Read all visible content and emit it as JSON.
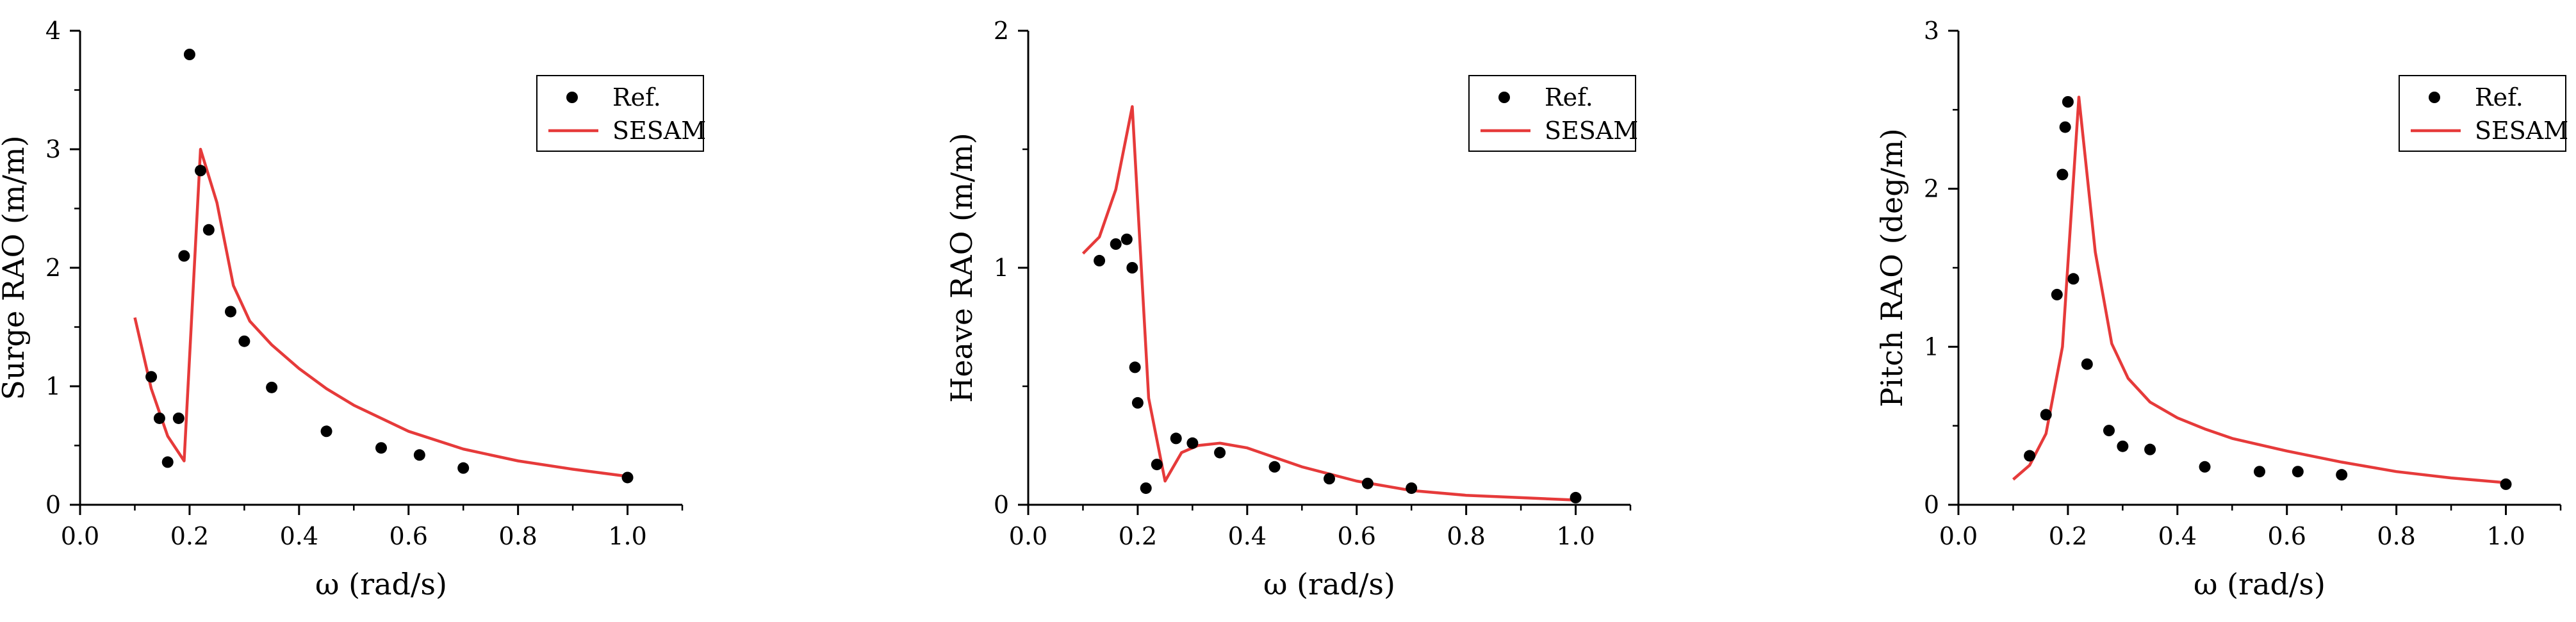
{
  "figure_title": "",
  "chart_data": [
    {
      "type": "scatter",
      "title": "",
      "xlabel": "ω (rad/s)",
      "ylabel": "Surge RAO (m/m)",
      "xlim": [
        0.0,
        1.1
      ],
      "ylim": [
        0,
        4
      ],
      "xticks": [
        0.0,
        0.2,
        0.4,
        0.6,
        0.8,
        1.0
      ],
      "xtick_labels": [
        "0.0",
        "0.2",
        "0.4",
        "0.6",
        "0.8",
        "1.0"
      ],
      "yticks": [
        0,
        1,
        2,
        3,
        4
      ],
      "ytick_labels": [
        "0",
        "1",
        "2",
        "3",
        "4"
      ],
      "grid": false,
      "legend": {
        "position": "top-right",
        "entries": [
          "Ref.",
          "SESAM"
        ]
      },
      "series": [
        {
          "name": "Ref.",
          "style": "markers",
          "color": "#000000",
          "x": [
            0.13,
            0.145,
            0.16,
            0.18,
            0.19,
            0.2,
            0.22,
            0.235,
            0.275,
            0.3,
            0.35,
            0.45,
            0.55,
            0.62,
            0.7,
            1.0
          ],
          "y": [
            1.08,
            0.73,
            0.36,
            0.73,
            2.1,
            3.8,
            2.82,
            2.32,
            1.63,
            1.38,
            0.99,
            0.62,
            0.48,
            0.42,
            0.31,
            0.23
          ]
        },
        {
          "name": "SESAM",
          "style": "line",
          "color": "#e63a3a",
          "x": [
            0.1,
            0.13,
            0.16,
            0.19,
            0.22,
            0.25,
            0.28,
            0.31,
            0.35,
            0.4,
            0.45,
            0.5,
            0.6,
            0.7,
            0.8,
            0.9,
            1.0
          ],
          "y": [
            1.58,
            0.98,
            0.58,
            0.37,
            3.0,
            2.55,
            1.85,
            1.55,
            1.35,
            1.15,
            0.98,
            0.84,
            0.62,
            0.47,
            0.37,
            0.3,
            0.24
          ]
        }
      ]
    },
    {
      "type": "scatter",
      "title": "",
      "xlabel": "ω (rad/s)",
      "ylabel": "Heave RAO (m/m)",
      "xlim": [
        0.0,
        1.1
      ],
      "ylim": [
        0,
        2
      ],
      "xticks": [
        0.0,
        0.2,
        0.4,
        0.6,
        0.8,
        1.0
      ],
      "xtick_labels": [
        "0.0",
        "0.2",
        "0.4",
        "0.6",
        "0.8",
        "1.0"
      ],
      "yticks": [
        0,
        1,
        2
      ],
      "ytick_labels": [
        "0",
        "1",
        "2"
      ],
      "grid": false,
      "legend": {
        "position": "top-right",
        "entries": [
          "Ref.",
          "SESAM"
        ]
      },
      "series": [
        {
          "name": "Ref.",
          "style": "markers",
          "color": "#000000",
          "x": [
            0.13,
            0.16,
            0.18,
            0.19,
            0.195,
            0.2,
            0.215,
            0.235,
            0.27,
            0.3,
            0.35,
            0.45,
            0.55,
            0.62,
            0.7,
            1.0
          ],
          "y": [
            1.03,
            1.1,
            1.12,
            1.0,
            0.58,
            0.43,
            0.07,
            0.17,
            0.28,
            0.26,
            0.22,
            0.16,
            0.11,
            0.09,
            0.07,
            0.03
          ]
        },
        {
          "name": "SESAM",
          "style": "line",
          "color": "#e63a3a",
          "x": [
            0.1,
            0.13,
            0.16,
            0.19,
            0.22,
            0.25,
            0.28,
            0.31,
            0.35,
            0.4,
            0.45,
            0.5,
            0.6,
            0.7,
            0.8,
            0.9,
            1.0
          ],
          "y": [
            1.06,
            1.13,
            1.33,
            1.68,
            0.45,
            0.1,
            0.22,
            0.25,
            0.26,
            0.24,
            0.2,
            0.16,
            0.1,
            0.06,
            0.04,
            0.03,
            0.02
          ]
        }
      ]
    },
    {
      "type": "scatter",
      "title": "",
      "xlabel": "ω (rad/s)",
      "ylabel": "Pitch RAO (deg/m)",
      "xlim": [
        0.0,
        1.1
      ],
      "ylim": [
        0,
        3
      ],
      "xticks": [
        0.0,
        0.2,
        0.4,
        0.6,
        0.8,
        1.0
      ],
      "xtick_labels": [
        "0.0",
        "0.2",
        "0.4",
        "0.6",
        "0.8",
        "1.0"
      ],
      "yticks": [
        0,
        1,
        2,
        3
      ],
      "ytick_labels": [
        "0",
        "1",
        "2",
        "3"
      ],
      "grid": false,
      "legend": {
        "position": "top-right",
        "entries": [
          "Ref.",
          "SESAM"
        ]
      },
      "series": [
        {
          "name": "Ref.",
          "style": "markers",
          "color": "#000000",
          "x": [
            0.13,
            0.16,
            0.18,
            0.19,
            0.195,
            0.2,
            0.21,
            0.235,
            0.275,
            0.3,
            0.35,
            0.45,
            0.55,
            0.62,
            0.7,
            1.0
          ],
          "y": [
            0.31,
            0.57,
            1.33,
            2.09,
            2.39,
            2.55,
            1.43,
            0.89,
            0.47,
            0.37,
            0.35,
            0.24,
            0.21,
            0.21,
            0.19,
            0.13
          ]
        },
        {
          "name": "SESAM",
          "style": "line",
          "color": "#e63a3a",
          "x": [
            0.1,
            0.13,
            0.16,
            0.19,
            0.22,
            0.25,
            0.28,
            0.31,
            0.35,
            0.4,
            0.45,
            0.5,
            0.6,
            0.7,
            0.8,
            0.9,
            1.0
          ],
          "y": [
            0.16,
            0.25,
            0.45,
            1.0,
            2.58,
            1.6,
            1.02,
            0.8,
            0.65,
            0.55,
            0.48,
            0.42,
            0.34,
            0.27,
            0.21,
            0.17,
            0.14
          ]
        }
      ]
    }
  ]
}
